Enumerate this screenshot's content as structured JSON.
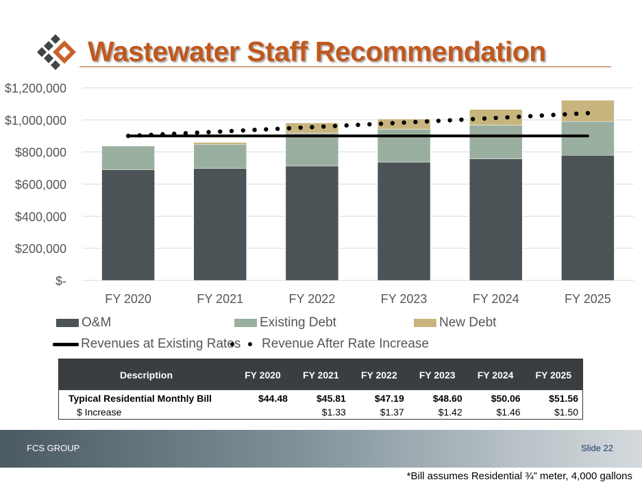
{
  "slide": {
    "title": "Wastewater Staff Recommendation",
    "footer_left": "FCS GROUP",
    "footer_right": "Slide 22",
    "footnote": "*Bill assumes Residential ¾” meter, 4,000 gallons"
  },
  "colors": {
    "om": "#4b5356",
    "existing_debt": "#9aaf9f",
    "new_debt": "#c8b57e",
    "title": "#c0581e",
    "logo_dark": "#3f4446",
    "logo_orange": "#c8622b"
  },
  "legend": {
    "om": "O&M",
    "existing_debt": "Existing Debt",
    "new_debt": "New Debt",
    "revenues_existing": "Revenues at Existing Rates",
    "revenue_after": "Revenue After Rate Increase"
  },
  "chart_data": {
    "type": "bar",
    "stacked": true,
    "categories": [
      "FY 2020",
      "FY 2021",
      "FY 2022",
      "FY 2023",
      "FY 2024",
      "FY 2025"
    ],
    "series": [
      {
        "name": "O&M",
        "kind": "bar",
        "values": [
          690000,
          697000,
          713000,
          737000,
          757000,
          780000
        ]
      },
      {
        "name": "Existing Debt",
        "kind": "bar",
        "values": [
          147000,
          150000,
          205000,
          205000,
          210000,
          210000
        ]
      },
      {
        "name": "New Debt",
        "kind": "bar",
        "values": [
          0,
          13000,
          63000,
          63000,
          98000,
          132000
        ]
      },
      {
        "name": "Revenues at Existing Rates",
        "kind": "line",
        "style": "solid",
        "values": [
          900000,
          900000,
          900000,
          900000,
          900000,
          900000
        ]
      },
      {
        "name": "Revenue After Rate Increase",
        "kind": "line",
        "style": "dotted",
        "values": [
          900000,
          927000,
          955000,
          983000,
          1012000,
          1042000
        ]
      }
    ],
    "ylim": [
      0,
      1200000
    ],
    "yticks": [
      0,
      200000,
      400000,
      600000,
      800000,
      1000000,
      1200000
    ],
    "ytick_labels": [
      "$-",
      "$200,000",
      "$400,000",
      "$600,000",
      "$800,000",
      "$1,000,000",
      "$1,200,000"
    ],
    "grid": true,
    "legend_position": "bottom"
  },
  "table": {
    "headers": [
      "Description",
      "FY 2020",
      "FY 2021",
      "FY 2022",
      "FY 2023",
      "FY 2024",
      "FY 2025"
    ],
    "rows": [
      [
        "Typical Residential Monthly Bill",
        "$44.48",
        "$45.81",
        "$47.19",
        "$48.60",
        "$50.06",
        "$51.56"
      ],
      [
        "$ Increase",
        "",
        "$1.33",
        "$1.37",
        "$1.42",
        "$1.46",
        "$1.50"
      ]
    ]
  }
}
